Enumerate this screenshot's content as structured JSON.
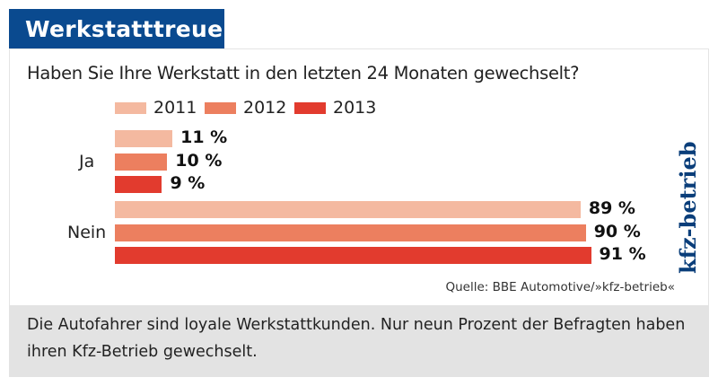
{
  "header": {
    "title": "Werkstatttreue"
  },
  "chart_data": {
    "type": "bar",
    "orientation": "horizontal",
    "title": "Haben Sie Ihre Werkstatt in den letzten 24 Monaten gewechselt?",
    "categories": [
      "Ja",
      "Nein"
    ],
    "series": [
      {
        "name": "2011",
        "values": [
          11,
          89
        ],
        "labels": [
          "11 %",
          "89 %"
        ],
        "color": "#f4b9a0"
      },
      {
        "name": "2012",
        "values": [
          10,
          90
        ],
        "labels": [
          "10 %",
          "90 %"
        ],
        "color": "#ec7f5f"
      },
      {
        "name": "2013",
        "values": [
          9,
          91
        ],
        "labels": [
          "9 %",
          "91 %"
        ],
        "color": "#e23b2e"
      }
    ],
    "unit": "%",
    "legend": "top",
    "grid": false
  },
  "watermark": "kfz-betrieb",
  "source": "Quelle: BBE Automotive/»kfz-betrieb«",
  "caption": "Die Autofahrer sind loyale Werkstattkunden. Nur neun Prozent der Befragten haben ihren Kfz-Betrieb gewechselt.",
  "colors": {
    "title_bg": "#0a4a8f",
    "caption_bg": "#e3e3e3"
  }
}
